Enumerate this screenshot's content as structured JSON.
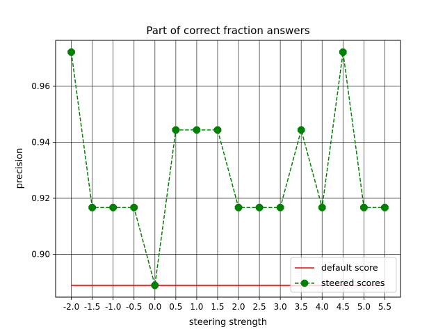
{
  "chart_data": {
    "type": "line",
    "title": "Part of correct fraction answers",
    "xlabel": "steering strength",
    "ylabel": "precision",
    "x": [
      -2.0,
      -1.5,
      -1.0,
      -0.5,
      0.0,
      0.5,
      1.0,
      1.5,
      2.0,
      2.5,
      3.0,
      3.5,
      4.0,
      4.5,
      5.0,
      5.5
    ],
    "x_tick_labels": [
      "-2.0",
      "-1.5",
      "-1.0",
      "-0.5",
      "0.0",
      "0.5",
      "1.0",
      "1.5",
      "2.0",
      "2.5",
      "3.0",
      "3.5",
      "4.0",
      "4.5",
      "5.0",
      "5.5"
    ],
    "y_ticks": [
      0.9,
      0.92,
      0.94,
      0.96
    ],
    "y_tick_labels": [
      "0.90",
      "0.92",
      "0.94",
      "0.96"
    ],
    "xlim": [
      -2.375,
      5.875
    ],
    "ylim": [
      0.8847,
      0.9764
    ],
    "grid": true,
    "legend_position": "lower-right",
    "series": [
      {
        "name": "default score",
        "color": "#ff0000",
        "style": "solid",
        "marker": "none",
        "values": [
          0.8889,
          0.8889,
          0.8889,
          0.8889,
          0.8889,
          0.8889,
          0.8889,
          0.8889,
          0.8889,
          0.8889,
          0.8889,
          0.8889,
          0.8889,
          0.8889,
          0.8889,
          0.8889
        ]
      },
      {
        "name": "steered scores",
        "color": "#008000",
        "style": "dashed",
        "marker": "octagon",
        "values": [
          0.9722,
          0.9167,
          0.9167,
          0.9167,
          0.8889,
          0.9444,
          0.9444,
          0.9444,
          0.9167,
          0.9167,
          0.9167,
          0.9444,
          0.9167,
          0.9722,
          0.9167,
          0.9167
        ]
      }
    ]
  }
}
